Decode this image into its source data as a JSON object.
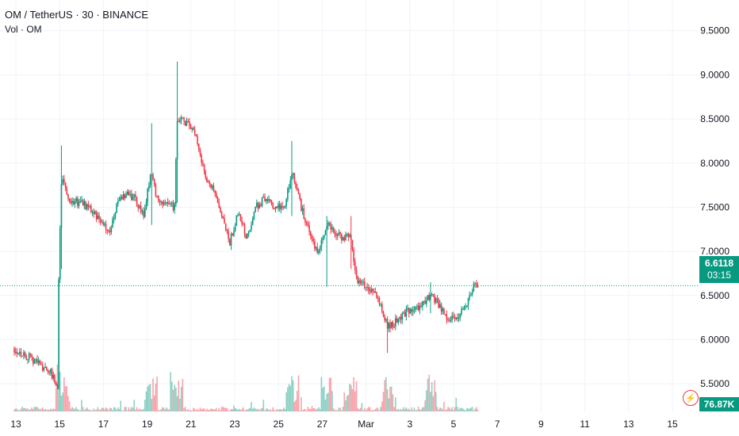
{
  "legend": {
    "title": "OM / TetherUS · 30 · BINANCE",
    "volume_label": "Vol · OM"
  },
  "badges": {
    "last_price": "6.6118",
    "countdown": "03:15",
    "volume": "76.87K"
  },
  "colors": {
    "up": "#089981",
    "down": "#f23645",
    "grid": "#f0f3fa",
    "text": "#131722"
  },
  "chart_data": {
    "type": "candlestick",
    "ylim": [
      5.25,
      9.65
    ],
    "y_ticks": [
      "9.5000",
      "9.0000",
      "8.5000",
      "8.0000",
      "7.5000",
      "7.0000",
      "6.5000",
      "6.0000",
      "5.5000"
    ],
    "y_tick_values": [
      9.5,
      9.0,
      8.5,
      8.0,
      7.5,
      7.0,
      6.5,
      6.0,
      5.5
    ],
    "x_ticks": [
      "13",
      "15",
      "17",
      "19",
      "21",
      "23",
      "25",
      "27",
      "Mar",
      "3",
      "5",
      "7",
      "9",
      "11",
      "13",
      "15"
    ],
    "last_price": 6.6118,
    "price_path": [
      [
        0,
        5.9
      ],
      [
        0.3,
        5.85
      ],
      [
        1.1,
        5.74
      ],
      [
        1.7,
        5.62
      ],
      [
        2.0,
        5.46
      ],
      [
        2.05,
        6.6
      ],
      [
        2.2,
        7.9
      ],
      [
        2.5,
        7.6
      ],
      [
        3.0,
        7.55
      ],
      [
        3.5,
        7.5
      ],
      [
        4.0,
        7.35
      ],
      [
        4.4,
        7.2
      ],
      [
        4.8,
        7.55
      ],
      [
        5.2,
        7.65
      ],
      [
        5.6,
        7.6
      ],
      [
        6.0,
        7.4
      ],
      [
        6.35,
        7.9
      ],
      [
        6.6,
        7.6
      ],
      [
        7.0,
        7.55
      ],
      [
        7.45,
        7.5
      ],
      [
        7.55,
        8.5
      ],
      [
        8.0,
        8.45
      ],
      [
        8.4,
        8.35
      ],
      [
        8.8,
        7.9
      ],
      [
        9.2,
        7.7
      ],
      [
        9.6,
        7.4
      ],
      [
        10.0,
        7.1
      ],
      [
        10.4,
        7.45
      ],
      [
        10.8,
        7.15
      ],
      [
        11.2,
        7.5
      ],
      [
        11.6,
        7.6
      ],
      [
        12.0,
        7.5
      ],
      [
        12.5,
        7.5
      ],
      [
        12.9,
        7.9
      ],
      [
        13.3,
        7.5
      ],
      [
        13.7,
        7.2
      ],
      [
        14.1,
        6.95
      ],
      [
        14.5,
        7.3
      ],
      [
        14.9,
        7.2
      ],
      [
        15.3,
        7.15
      ],
      [
        15.6,
        7.2
      ],
      [
        15.9,
        6.65
      ],
      [
        16.3,
        6.6
      ],
      [
        16.7,
        6.55
      ],
      [
        17.0,
        6.4
      ],
      [
        17.3,
        6.15
      ],
      [
        17.7,
        6.2
      ],
      [
        18.1,
        6.3
      ],
      [
        18.5,
        6.35
      ],
      [
        18.9,
        6.4
      ],
      [
        19.3,
        6.5
      ],
      [
        19.7,
        6.4
      ],
      [
        20.1,
        6.25
      ],
      [
        20.5,
        6.22
      ],
      [
        20.9,
        6.35
      ],
      [
        21.3,
        6.6
      ],
      [
        21.5,
        6.6118
      ]
    ],
    "spikes": [
      {
        "x": 2.2,
        "high": 8.2,
        "low": 6.8
      },
      {
        "x": 6.35,
        "high": 8.45,
        "low": 7.3
      },
      {
        "x": 7.55,
        "high": 9.15,
        "low": 7.55
      },
      {
        "x": 12.9,
        "high": 8.25,
        "low": 7.4
      },
      {
        "x": 14.5,
        "high": 7.4,
        "low": 6.6
      },
      {
        "x": 15.6,
        "high": 7.4,
        "low": 6.8
      },
      {
        "x": 17.3,
        "high": 6.2,
        "low": 5.85
      },
      {
        "x": 19.3,
        "high": 6.65,
        "low": 6.3
      }
    ]
  }
}
